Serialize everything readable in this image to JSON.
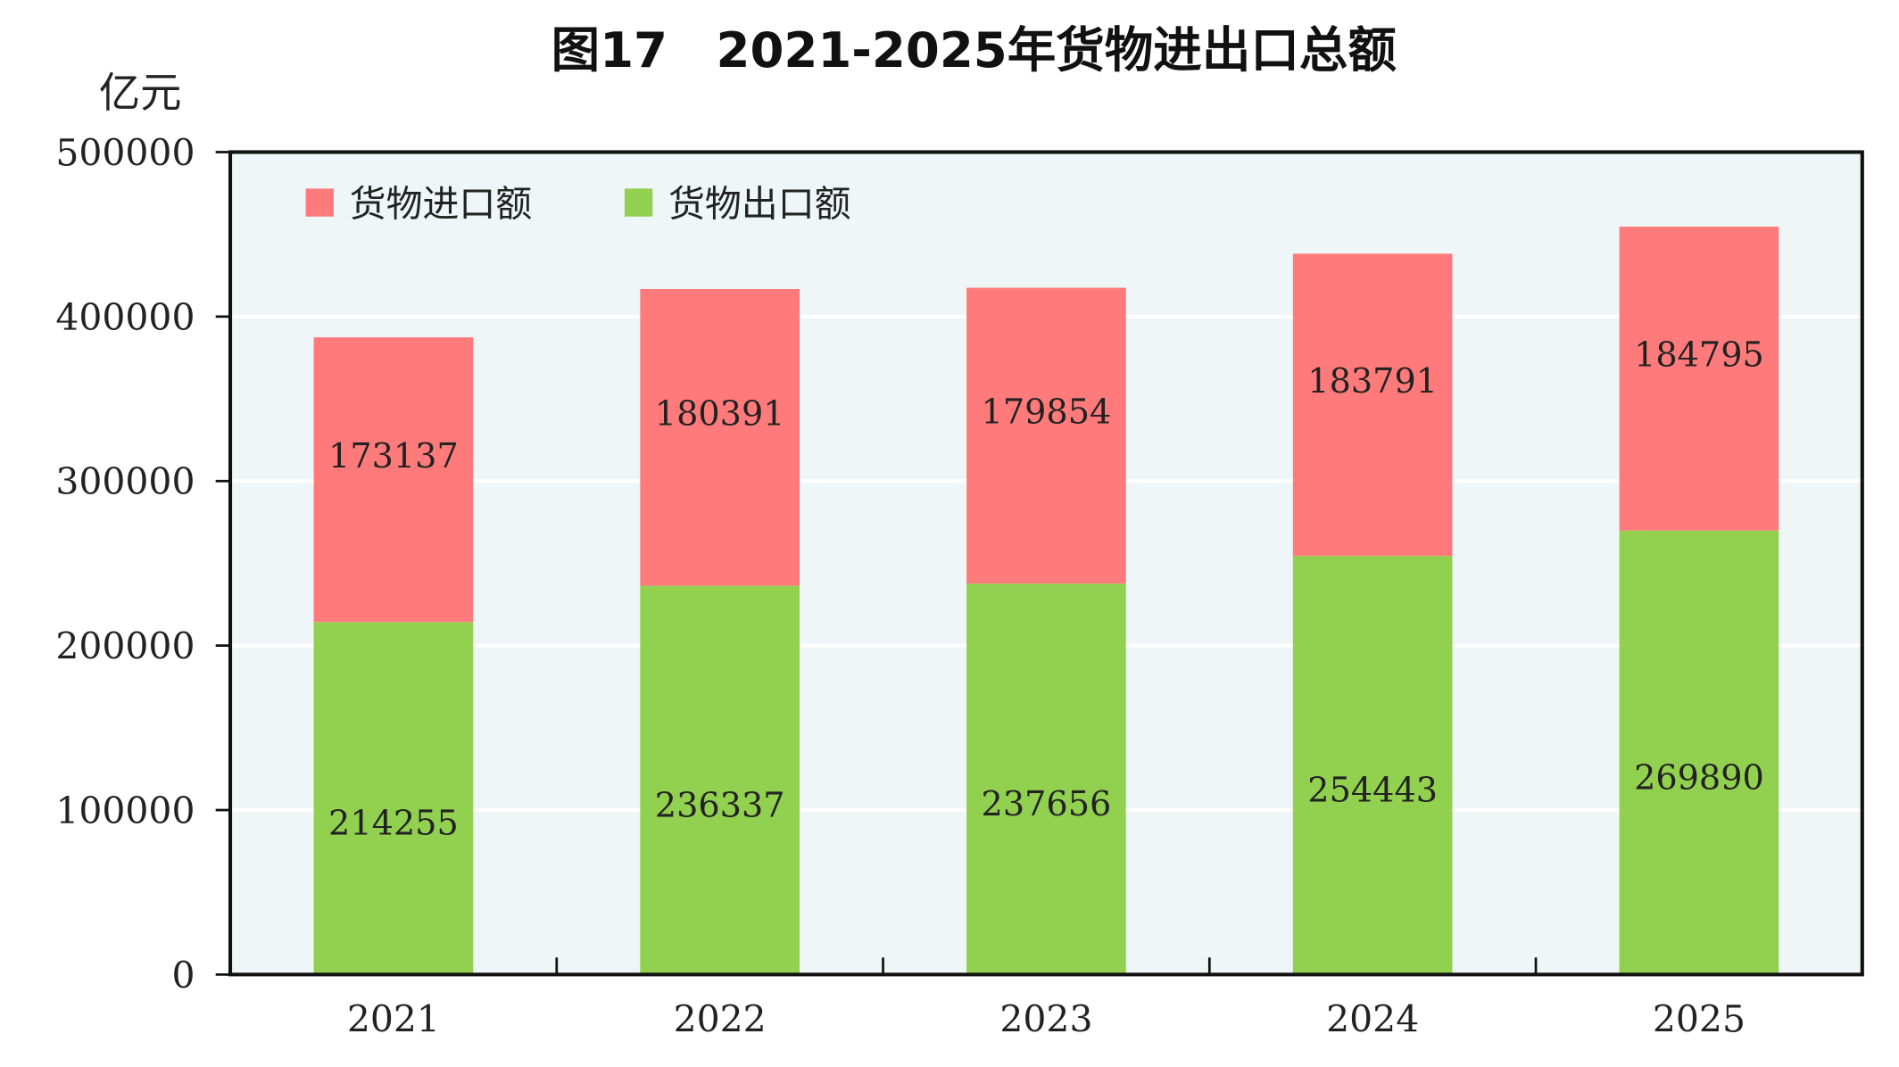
{
  "chart_data": {
    "type": "bar",
    "stacked": true,
    "title": "图17　2021-2025年货物进出口总额",
    "ylabel": "亿元",
    "xlabel": "",
    "categories": [
      "2021",
      "2022",
      "2023",
      "2024",
      "2025"
    ],
    "series": [
      {
        "name": "货物出口额",
        "color": "#92D050",
        "values": [
          214255,
          236337,
          237656,
          254443,
          269890
        ]
      },
      {
        "name": "货物进口额",
        "color": "#FF7B7B",
        "values": [
          173137,
          180391,
          179854,
          183791,
          184795
        ]
      }
    ],
    "legend_order": [
      1,
      0
    ],
    "ylim": [
      0,
      500000
    ],
    "yticks": [
      "0",
      "100000",
      "200000",
      "300000",
      "400000",
      "500000"
    ],
    "grid": true,
    "legend_position": "top-left",
    "plot_background": "#EEF6F8",
    "data_labels": true
  }
}
